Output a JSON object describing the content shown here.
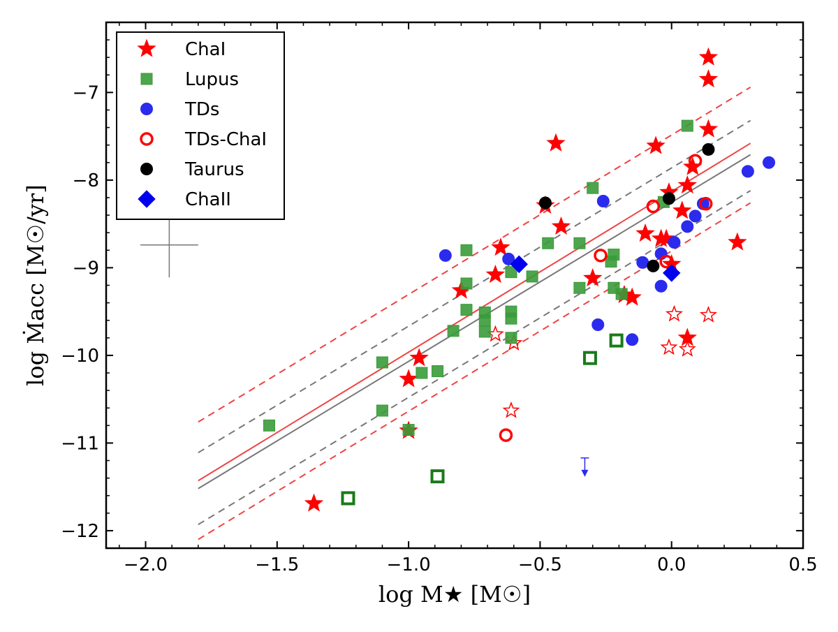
{
  "chart_data": {
    "type": "scatter",
    "xlabel": "log M★ [M☉]",
    "ylabel": "log Ṁacc [M☉/yr]",
    "xlim": [
      -2.15,
      0.5
    ],
    "ylim": [
      -12.2,
      -6.2
    ],
    "x_ticks": [
      -2.0,
      -1.5,
      -1.0,
      -0.5,
      0.0,
      0.5
    ],
    "x_tick_labels": [
      "−2.0",
      "−1.5",
      "−1.0",
      "−0.5",
      "0.0",
      "0.5"
    ],
    "y_ticks": [
      -12,
      -11,
      -10,
      -9,
      -8,
      -7
    ],
    "y_tick_labels": [
      "−12",
      "−11",
      "−10",
      "−9",
      "−8",
      "−7"
    ],
    "grid": false,
    "legend_position": "top-left",
    "legend": [
      {
        "label": "ChaI",
        "marker": "star",
        "color": "#ff0000"
      },
      {
        "label": "Lupus",
        "marker": "square",
        "color": "#3a9b3a"
      },
      {
        "label": "TDs",
        "marker": "circle",
        "color": "#2b2bee"
      },
      {
        "label": "TDs-ChaI",
        "marker": "open-circle",
        "color": "#ff0000"
      },
      {
        "label": "Taurus",
        "marker": "circle",
        "color": "#000000"
      },
      {
        "label": "ChaII",
        "marker": "diamond",
        "color": "#0000ee"
      }
    ],
    "series": [
      {
        "name": "ChaI",
        "marker": "star",
        "color": "#ff0000",
        "points": [
          [
            -1.36,
            -11.69
          ],
          [
            -1.0,
            -10.86
          ],
          [
            -1.0,
            -10.27
          ],
          [
            -0.96,
            -10.03
          ],
          [
            -0.8,
            -9.26
          ],
          [
            -0.67,
            -9.08
          ],
          [
            -0.65,
            -8.77
          ],
          [
            -0.48,
            -8.29
          ],
          [
            -0.44,
            -7.58
          ],
          [
            -0.42,
            -8.53
          ],
          [
            -0.3,
            -9.12
          ],
          [
            -0.18,
            -9.31
          ],
          [
            -0.15,
            -9.34
          ],
          [
            -0.1,
            -8.61
          ],
          [
            -0.06,
            -7.61
          ],
          [
            -0.04,
            -8.67
          ],
          [
            -0.02,
            -8.67
          ],
          [
            -0.01,
            -8.14
          ],
          [
            0.0,
            -8.96
          ],
          [
            0.04,
            -8.35
          ],
          [
            0.06,
            -8.06
          ],
          [
            0.08,
            -7.85
          ],
          [
            0.14,
            -7.42
          ],
          [
            0.14,
            -6.85
          ],
          [
            0.14,
            -6.6
          ],
          [
            0.25,
            -8.71
          ],
          [
            0.06,
            -9.8
          ]
        ]
      },
      {
        "name": "",
        "marker": "open-star",
        "color": "#ff0000",
        "points": [
          [
            -0.67,
            -9.76
          ],
          [
            -0.6,
            -9.86
          ],
          [
            -0.61,
            -10.63
          ],
          [
            -0.01,
            -9.91
          ],
          [
            0.01,
            -9.53
          ],
          [
            0.06,
            -9.93
          ],
          [
            0.14,
            -9.54
          ]
        ]
      },
      {
        "name": "Lupus",
        "marker": "square",
        "color": "#3a9b3a",
        "points": [
          [
            -1.53,
            -10.8
          ],
          [
            -1.1,
            -10.63
          ],
          [
            -1.1,
            -10.08
          ],
          [
            -1.0,
            -10.85
          ],
          [
            -0.95,
            -10.2
          ],
          [
            -0.89,
            -10.18
          ],
          [
            -0.83,
            -9.72
          ],
          [
            -0.78,
            -8.8
          ],
          [
            -0.78,
            -9.18
          ],
          [
            -0.78,
            -9.48
          ],
          [
            -0.71,
            -9.51
          ],
          [
            -0.71,
            -9.6
          ],
          [
            -0.71,
            -9.73
          ],
          [
            -0.61,
            -9.05
          ],
          [
            -0.61,
            -9.5
          ],
          [
            -0.61,
            -9.58
          ],
          [
            -0.61,
            -9.8
          ],
          [
            -0.53,
            -9.1
          ],
          [
            -0.47,
            -8.72
          ],
          [
            -0.35,
            -8.72
          ],
          [
            -0.35,
            -9.23
          ],
          [
            -0.3,
            -8.09
          ],
          [
            -0.23,
            -8.93
          ],
          [
            -0.22,
            -8.85
          ],
          [
            -0.22,
            -9.23
          ],
          [
            -0.19,
            -9.3
          ],
          [
            -0.03,
            -8.25
          ],
          [
            0.06,
            -7.38
          ]
        ]
      },
      {
        "name": "",
        "marker": "open-square",
        "color": "#1a7a1a",
        "points": [
          [
            -1.23,
            -11.63
          ],
          [
            -0.89,
            -11.38
          ],
          [
            -0.31,
            -10.03
          ],
          [
            -0.21,
            -9.83
          ]
        ]
      },
      {
        "name": "TDs",
        "marker": "circle",
        "color": "#2b2bee",
        "points": [
          [
            -0.86,
            -8.86
          ],
          [
            -0.62,
            -8.9
          ],
          [
            -0.28,
            -9.65
          ],
          [
            -0.26,
            -8.24
          ],
          [
            -0.15,
            -9.82
          ],
          [
            -0.11,
            -8.94
          ],
          [
            -0.04,
            -9.21
          ],
          [
            -0.04,
            -8.84
          ],
          [
            0.01,
            -8.71
          ],
          [
            0.06,
            -8.53
          ],
          [
            0.09,
            -8.41
          ],
          [
            0.12,
            -8.27
          ],
          [
            0.29,
            -7.9
          ],
          [
            0.37,
            -7.8
          ]
        ]
      },
      {
        "name": "TDs-ChaI",
        "marker": "open-circle",
        "color": "#ff0000",
        "points": [
          [
            -0.63,
            -10.91
          ],
          [
            -0.27,
            -8.86
          ],
          [
            -0.07,
            -8.3
          ],
          [
            -0.02,
            -8.93
          ],
          [
            0.09,
            -7.78
          ],
          [
            0.13,
            -8.27
          ]
        ]
      },
      {
        "name": "Taurus",
        "marker": "circle",
        "color": "#000000",
        "points": [
          [
            -0.48,
            -8.26
          ],
          [
            -0.07,
            -8.98
          ],
          [
            -0.01,
            -8.21
          ],
          [
            0.14,
            -7.65
          ]
        ]
      },
      {
        "name": "ChaII",
        "marker": "diamond",
        "color": "#0000ee",
        "points": [
          [
            -0.58,
            -8.96
          ],
          [
            0.0,
            -9.06
          ]
        ]
      }
    ],
    "upper_limits": [
      {
        "x": -0.33,
        "y": -11.17,
        "color": "#2b2bee"
      }
    ],
    "fit_lines": [
      {
        "color": "#ee4444",
        "style": "solid",
        "x": [
          -1.8,
          0.3
        ],
        "y": [
          -11.43,
          -7.58
        ]
      },
      {
        "color": "#ee4444",
        "style": "dashed",
        "x": [
          -1.8,
          0.3
        ],
        "y": [
          -10.76,
          -6.94
        ]
      },
      {
        "color": "#ee4444",
        "style": "dashed",
        "x": [
          -1.8,
          0.3
        ],
        "y": [
          -12.1,
          -8.26
        ]
      },
      {
        "color": "#777777",
        "style": "solid",
        "x": [
          -1.8,
          0.3
        ],
        "y": [
          -11.52,
          -7.71
        ]
      },
      {
        "color": "#777777",
        "style": "dashed",
        "x": [
          -1.8,
          0.3
        ],
        "y": [
          -11.11,
          -7.32
        ]
      },
      {
        "color": "#777777",
        "style": "dashed",
        "x": [
          -1.8,
          0.3
        ],
        "y": [
          -11.93,
          -8.12
        ]
      }
    ],
    "error_cross": {
      "x": -1.91,
      "y": -8.74,
      "dx": 0.11,
      "dy": 0.37,
      "color": "#777777"
    }
  }
}
